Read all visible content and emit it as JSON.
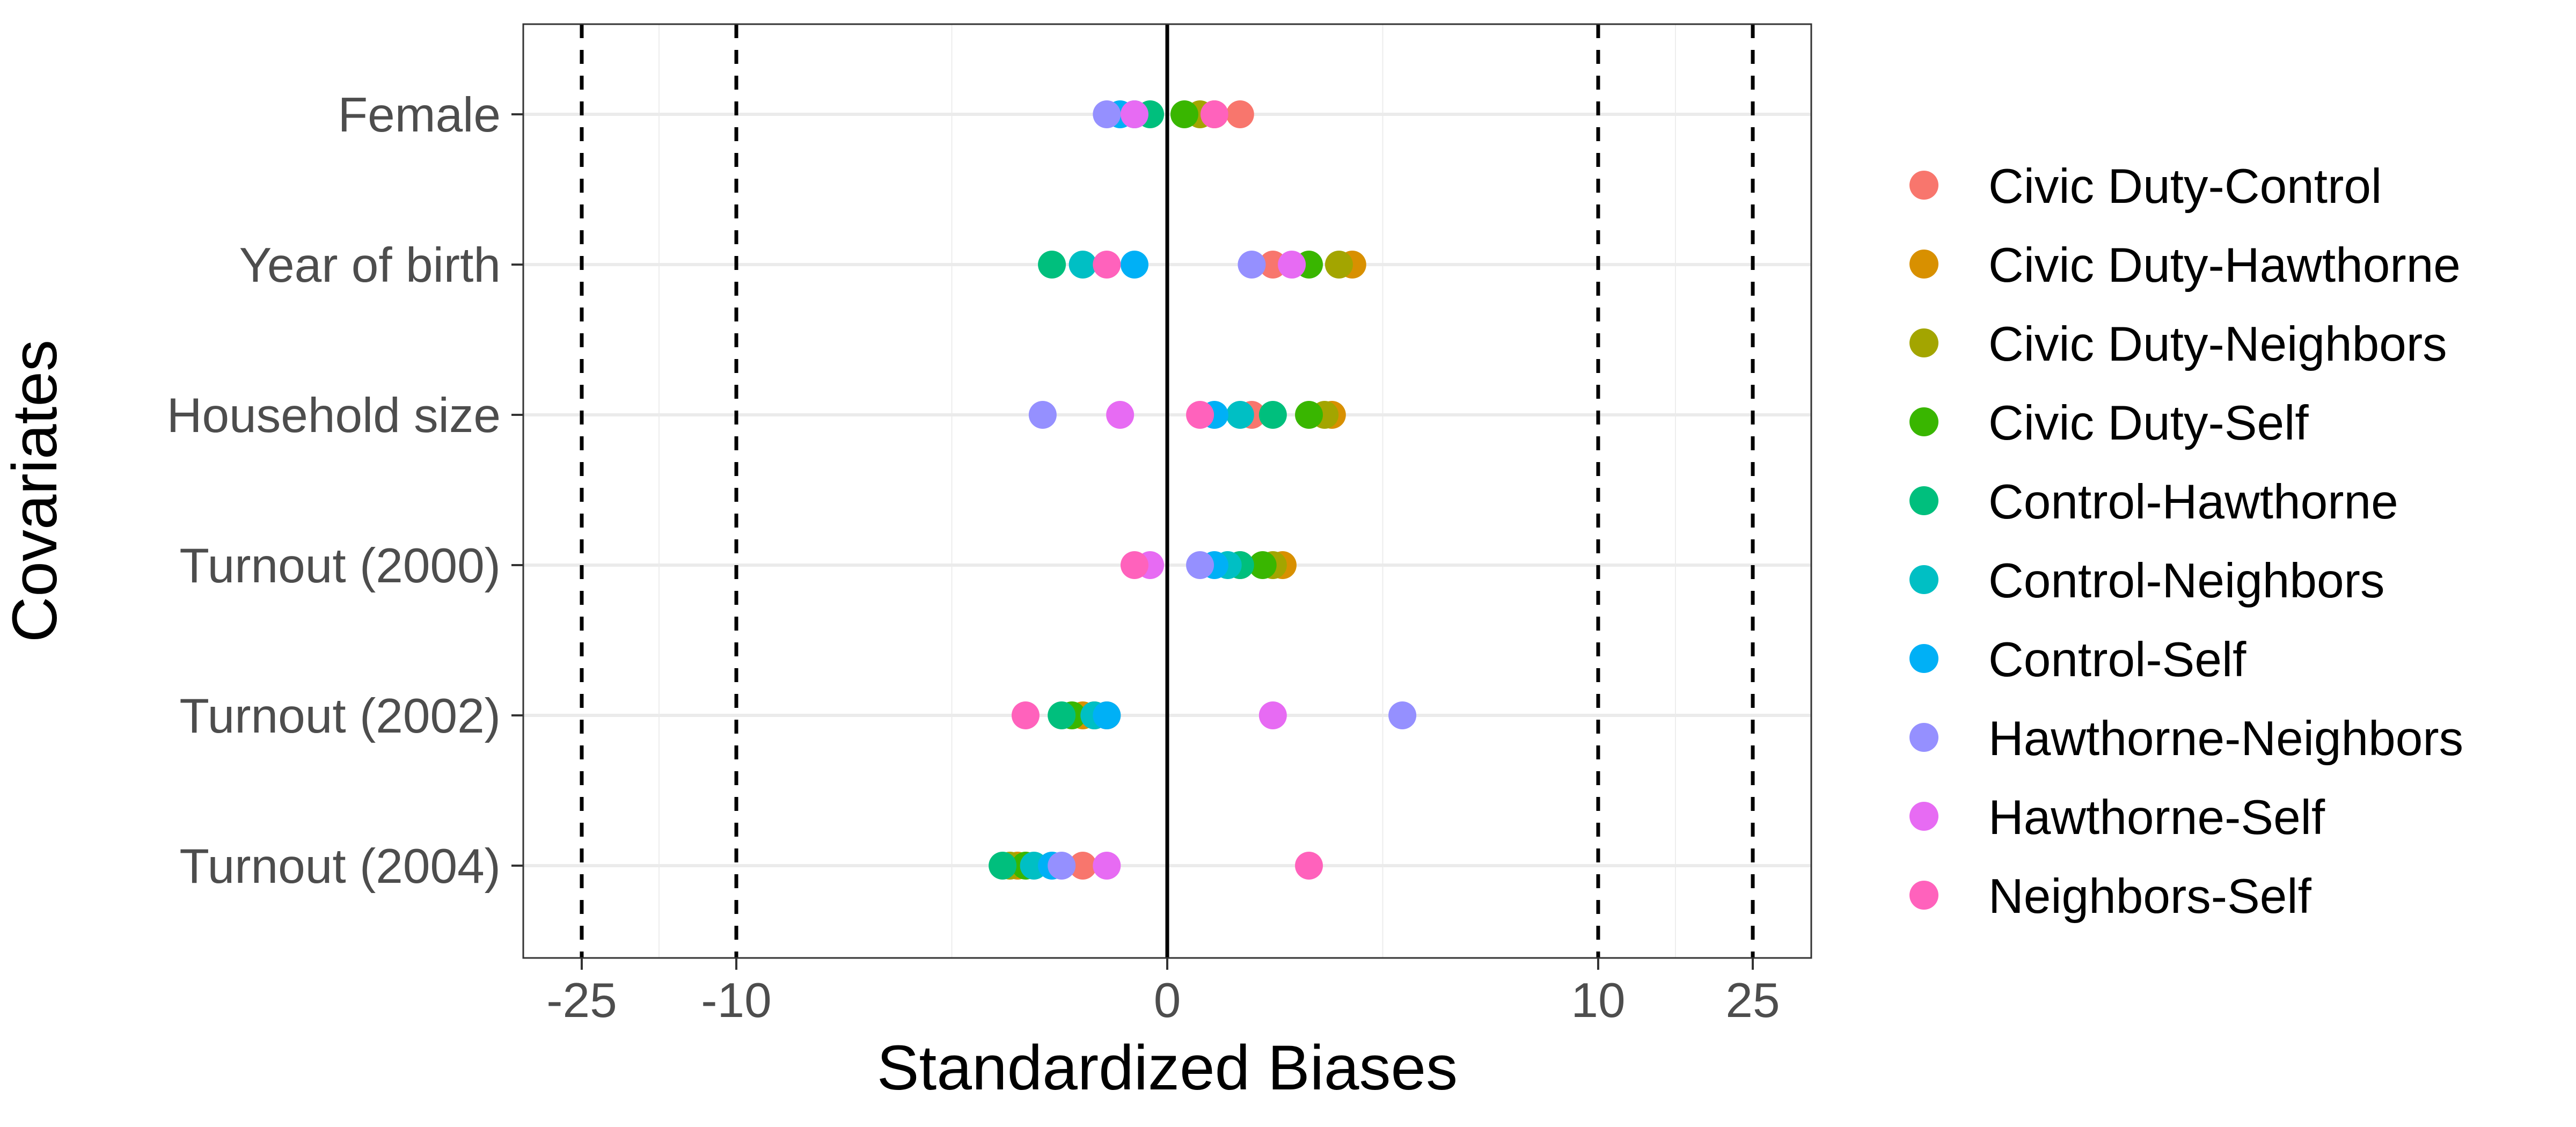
{
  "chart_data": {
    "type": "scatter",
    "xlabel": "Standardized Biases",
    "ylabel": "Covariates",
    "x_scale": "pseudo-log (sign-preserving)",
    "xlim": [
      -35,
      35
    ],
    "x_ticks": [
      -25,
      -10,
      0,
      10,
      25
    ],
    "x_tick_labels": [
      "-25",
      "-10",
      "0",
      "10",
      "25"
    ],
    "reference_lines": {
      "solid": [
        0
      ],
      "dashed": [
        -25,
        -10,
        10,
        25
      ]
    },
    "categories": [
      "Female",
      "Year of birth",
      "Household size",
      "Turnout (2000)",
      "Turnout (2002)",
      "Turnout (2004)"
    ],
    "grid": true,
    "legend_position": "right",
    "series": [
      {
        "name": "Civic Duty-Control",
        "color": "#F8766D",
        "values": [
          0.5,
          0.8,
          0.6,
          0.5,
          -0.4,
          -0.6
        ]
      },
      {
        "name": "Civic Duty-Hawthorne",
        "color": "#D89000",
        "values": [
          0.3,
          1.8,
          1.5,
          0.9,
          -0.6,
          -1.3
        ]
      },
      {
        "name": "Civic Duty-Neighbors",
        "color": "#A3A500",
        "values": [
          0.2,
          1.6,
          1.4,
          0.8,
          -0.5,
          -1.4
        ]
      },
      {
        "name": "Civic Duty-Self",
        "color": "#39B600",
        "values": [
          0.1,
          1.2,
          1.2,
          0.7,
          -0.7,
          -1.2
        ]
      },
      {
        "name": "Control-Hawthorne",
        "color": "#00BF7D",
        "values": [
          -0.1,
          -0.9,
          0.8,
          0.5,
          -0.8,
          -1.5
        ]
      },
      {
        "name": "Control-Neighbors",
        "color": "#00BFC4",
        "values": [
          -0.2,
          -0.6,
          0.5,
          0.4,
          -0.5,
          -1.1
        ]
      },
      {
        "name": "Control-Self",
        "color": "#00B0F6",
        "values": [
          -0.3,
          -0.2,
          0.3,
          0.3,
          -0.4,
          -0.9
        ]
      },
      {
        "name": "Hawthorne-Neighbors",
        "color": "#9590FF",
        "values": [
          -0.4,
          0.6,
          -1.0,
          0.2,
          2.7,
          -0.8
        ]
      },
      {
        "name": "Hawthorne-Self",
        "color": "#E76BF3",
        "values": [
          -0.2,
          1.0,
          -0.3,
          -0.1,
          0.8,
          -0.4
        ]
      },
      {
        "name": "Neighbors-Self",
        "color": "#FF62BC",
        "values": [
          0.3,
          -0.4,
          0.2,
          -0.2,
          -1.2,
          1.2
        ]
      }
    ]
  }
}
